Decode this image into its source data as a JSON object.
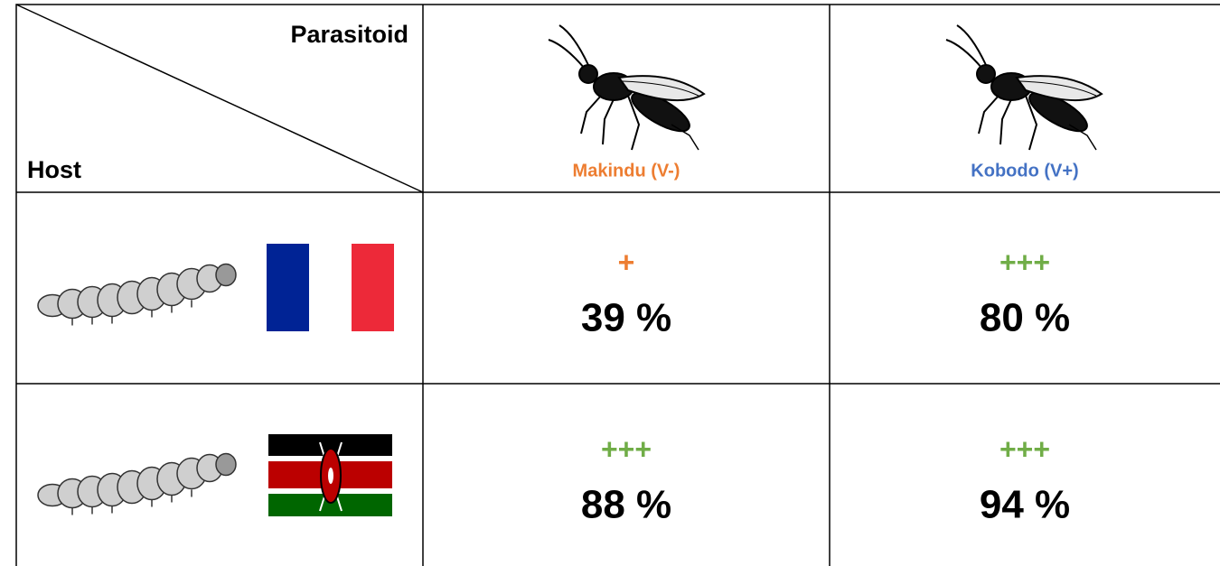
{
  "header": {
    "parasitoid_label": "Parasitoid",
    "host_label": "Host",
    "columns": [
      {
        "label": "Makindu (V-)"
      },
      {
        "label": "Kobodo (V+)"
      }
    ]
  },
  "table": {
    "rows": [
      {
        "cells": [
          {
            "rating": "+",
            "value": "39 %"
          },
          {
            "rating": "+++",
            "value": "80 %"
          }
        ]
      },
      {
        "cells": [
          {
            "rating": "+++",
            "value": "88 %"
          },
          {
            "rating": "+++",
            "value": "94 %"
          }
        ]
      }
    ]
  }
}
